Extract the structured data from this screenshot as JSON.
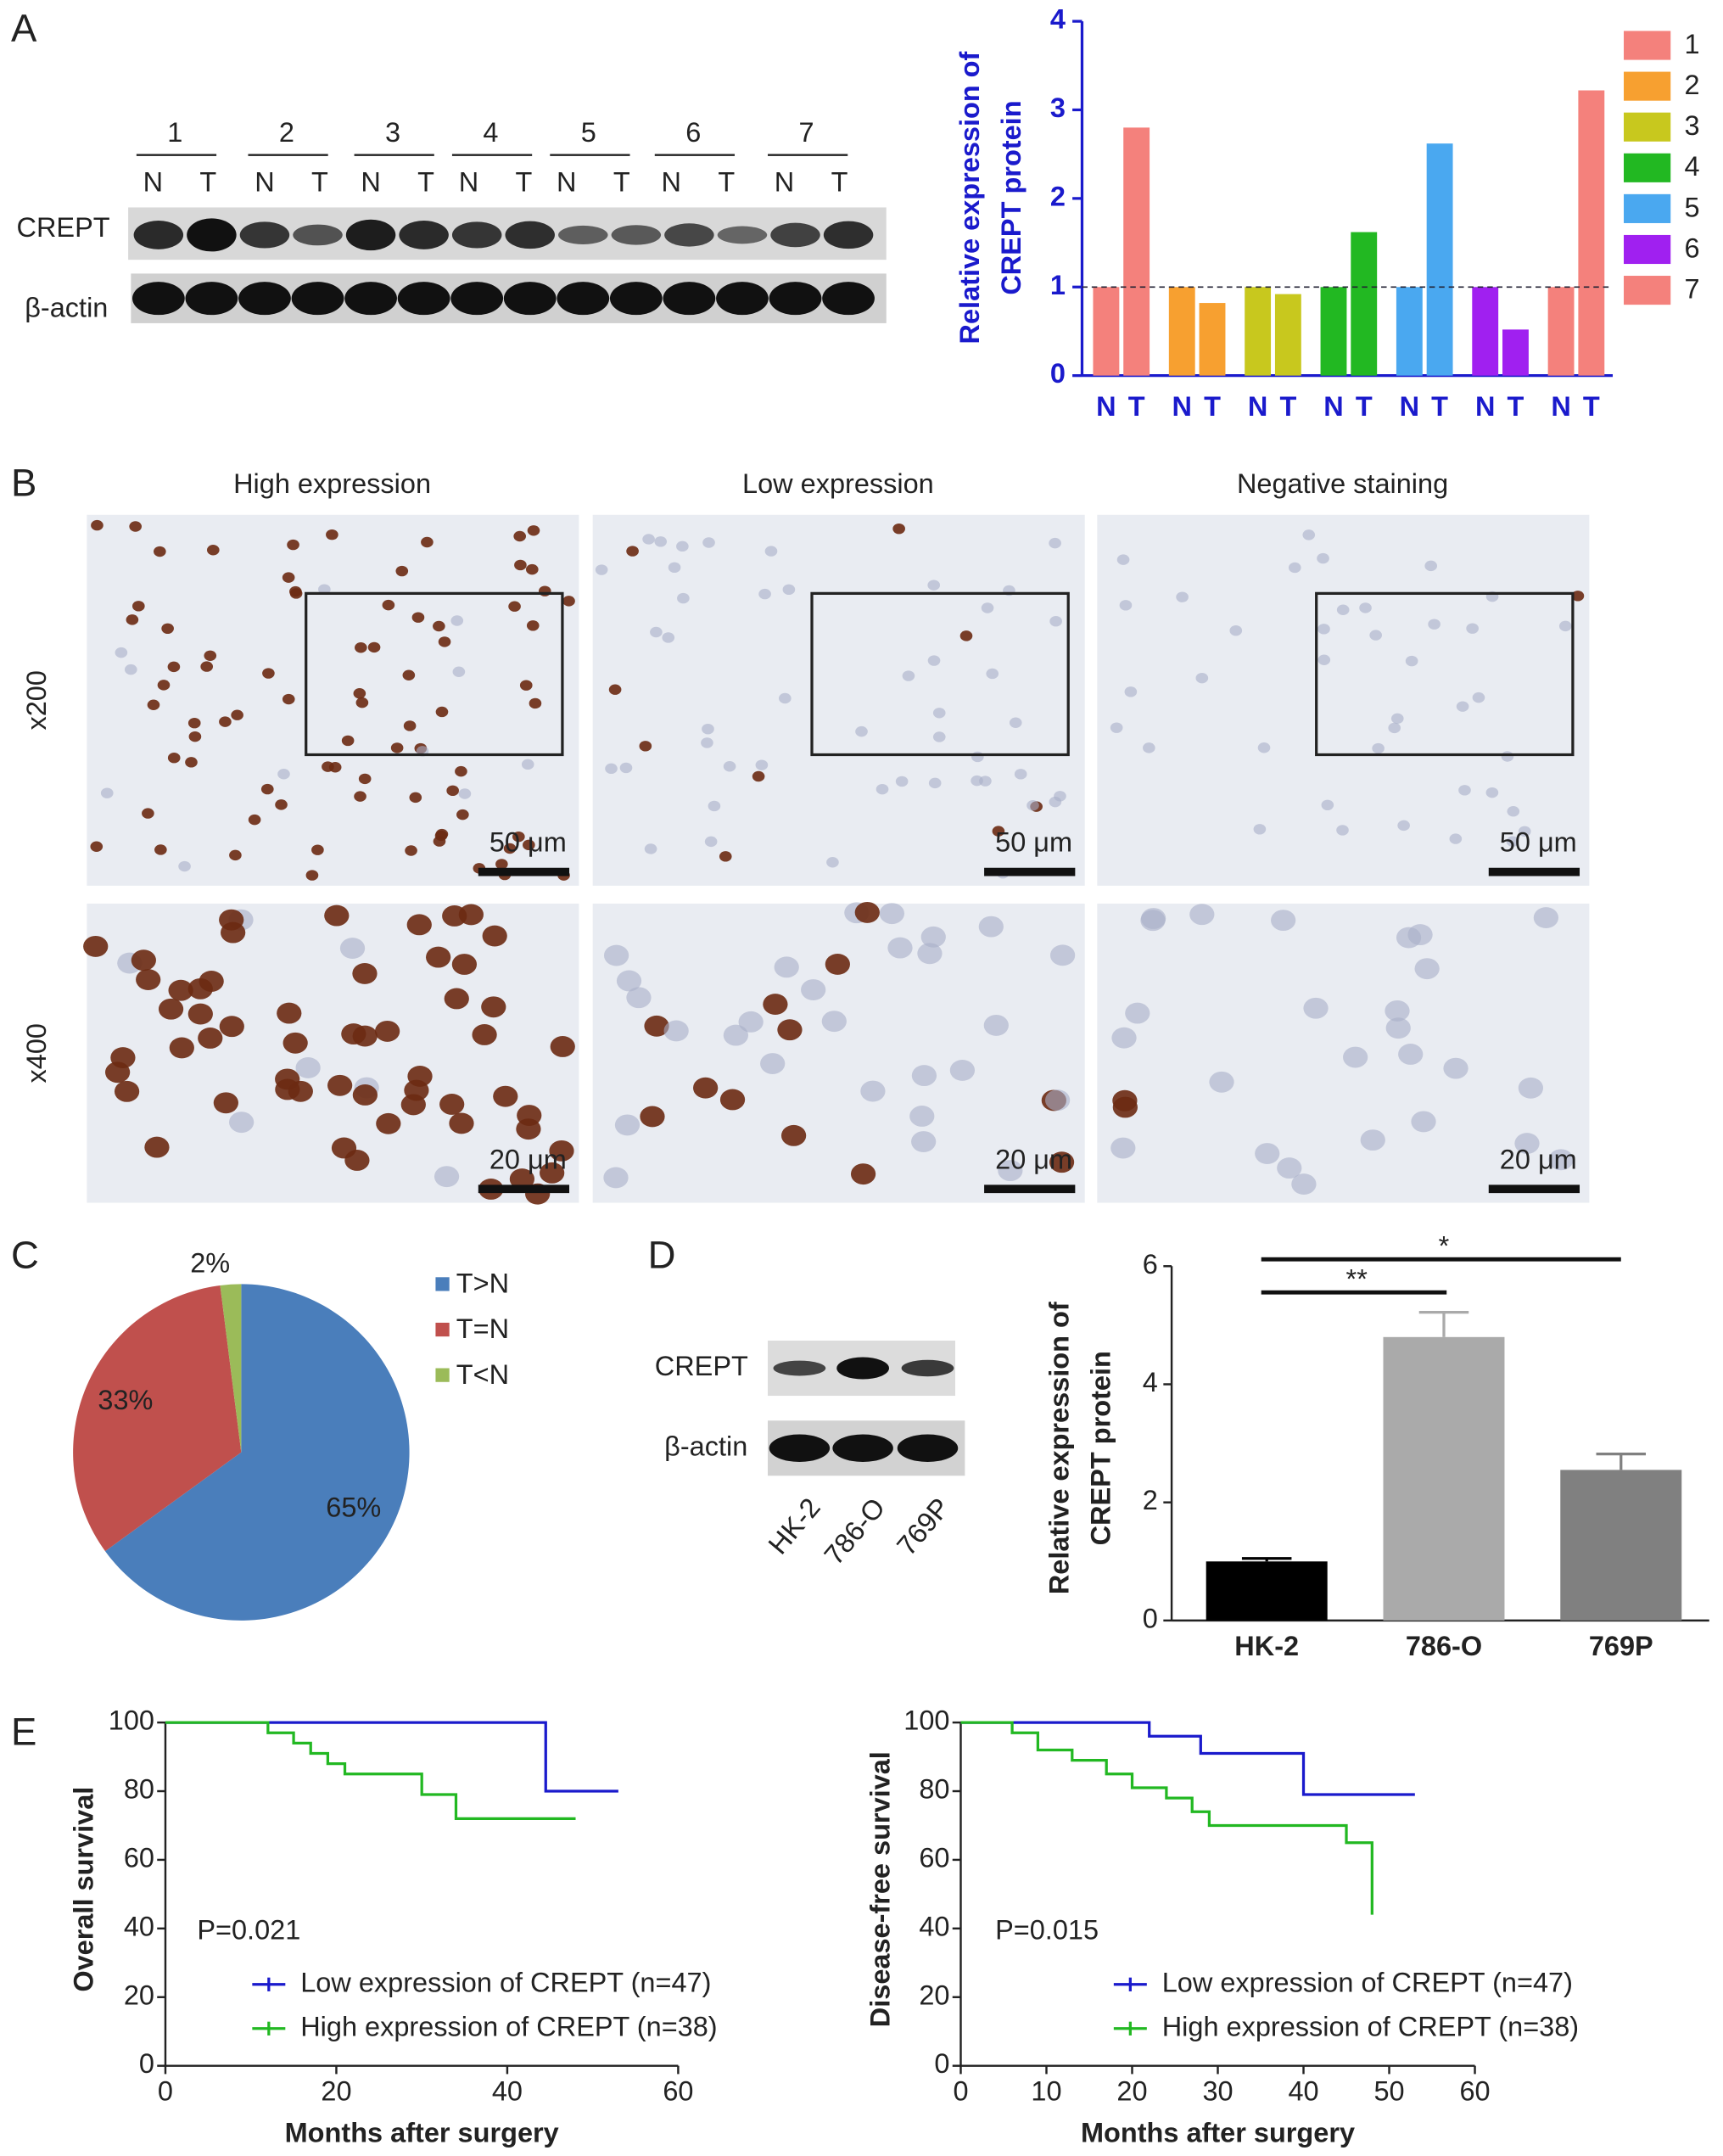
{
  "panel_labels": [
    "A",
    "B",
    "C",
    "D",
    "E"
  ],
  "blot_a": {
    "lanes": [
      "1",
      "2",
      "3",
      "4",
      "5",
      "6",
      "7"
    ],
    "lane_sub": [
      "N",
      "T"
    ],
    "rows": [
      "CREPT",
      "β-actin"
    ]
  },
  "histology": {
    "columns": [
      "High expression",
      "Low expression",
      "Negative staining"
    ],
    "rows": [
      "x200",
      "x400"
    ],
    "scale_bars": [
      "50 μm",
      "20 μm"
    ]
  },
  "blot_d": {
    "rows": [
      "CREPT",
      "β-actin"
    ],
    "lanes": [
      "HK-2",
      "786-O",
      "769P"
    ]
  },
  "chart_data": [
    {
      "type": "bar",
      "ylabel": [
        "Relative expression of",
        "CREPT protein"
      ],
      "categories": [
        "N",
        "T"
      ],
      "series": [
        {
          "name": "1",
          "color": "#f4817c",
          "values": [
            1,
            2.8
          ]
        },
        {
          "name": "2",
          "color": "#f7a030",
          "values": [
            1,
            0.82
          ]
        },
        {
          "name": "3",
          "color": "#c8c81e",
          "values": [
            1,
            0.92
          ]
        },
        {
          "name": "4",
          "color": "#22b822",
          "values": [
            1,
            1.62
          ]
        },
        {
          "name": "5",
          "color": "#4aa8f0",
          "values": [
            1,
            2.62
          ]
        },
        {
          "name": "6",
          "color": "#a020f0",
          "values": [
            1,
            0.52
          ]
        },
        {
          "name": "7",
          "color": "#f4817c",
          "values": [
            1,
            3.22
          ]
        }
      ],
      "ylim": [
        0,
        4
      ],
      "yticks": [
        0,
        1,
        2,
        3,
        4
      ],
      "reference_line": 1
    },
    {
      "type": "pie",
      "categories": [
        "T>N",
        "T=N",
        "T<N"
      ],
      "values": [
        65,
        33,
        2
      ],
      "value_labels": [
        "65%",
        "33%",
        "2%"
      ],
      "colors": [
        "#4a7ebb",
        "#c0504d",
        "#9bbb59"
      ]
    },
    {
      "type": "bar",
      "ylabel": [
        "Relative expression of",
        "CREPT protein"
      ],
      "categories": [
        "HK-2",
        "786-O",
        "769P"
      ],
      "values": [
        1,
        4.8,
        2.55
      ],
      "errors": [
        0.05,
        0.42,
        0.27
      ],
      "colors": [
        "#000000",
        "#aaaaaa",
        "#808080"
      ],
      "ylim": [
        0,
        6
      ],
      "yticks": [
        0,
        2,
        4,
        6
      ],
      "annotations": [
        "**",
        "*"
      ]
    },
    {
      "type": "line",
      "step": true,
      "xlabel": "Months after surgery",
      "ylabel": "Overall survival",
      "annotation": "P=0.021",
      "xlim": [
        0,
        60
      ],
      "xticks": [
        0,
        20,
        40,
        60
      ],
      "ylim": [
        0,
        100
      ],
      "yticks": [
        0,
        20,
        40,
        60,
        80,
        100
      ],
      "series": [
        {
          "name": "Low expression of CREPT (n=47)",
          "color": "#1a1acc",
          "x": [
            0,
            44.5,
            53
          ],
          "values": [
            100,
            80,
            80
          ]
        },
        {
          "name": "High expression of CREPT (n=38)",
          "color": "#22b822",
          "x": [
            0,
            12,
            15,
            17,
            19,
            21,
            30,
            34,
            48
          ],
          "values": [
            100,
            97,
            94,
            91,
            88,
            85,
            79,
            72,
            72
          ]
        }
      ]
    },
    {
      "type": "line",
      "step": true,
      "xlabel": "Months after surgery",
      "ylabel": "Disease-free survival",
      "annotation": "P=0.015",
      "xlim": [
        0,
        60
      ],
      "xticks": [
        0,
        10,
        20,
        30,
        40,
        50,
        60
      ],
      "ylim": [
        0,
        100
      ],
      "yticks": [
        0,
        20,
        40,
        60,
        80,
        100
      ],
      "series": [
        {
          "name": "Low expression of CREPT (n=47)",
          "color": "#1a1acc",
          "x": [
            0,
            22,
            28,
            40,
            53
          ],
          "values": [
            100,
            96,
            91,
            79,
            79
          ]
        },
        {
          "name": "High expression of CREPT (n=38)",
          "color": "#22b822",
          "x": [
            0,
            6,
            9,
            13,
            17,
            20,
            24,
            27,
            29,
            45,
            48
          ],
          "values": [
            100,
            97,
            92,
            89,
            85,
            81,
            78,
            74,
            70,
            65,
            44
          ]
        }
      ]
    }
  ]
}
